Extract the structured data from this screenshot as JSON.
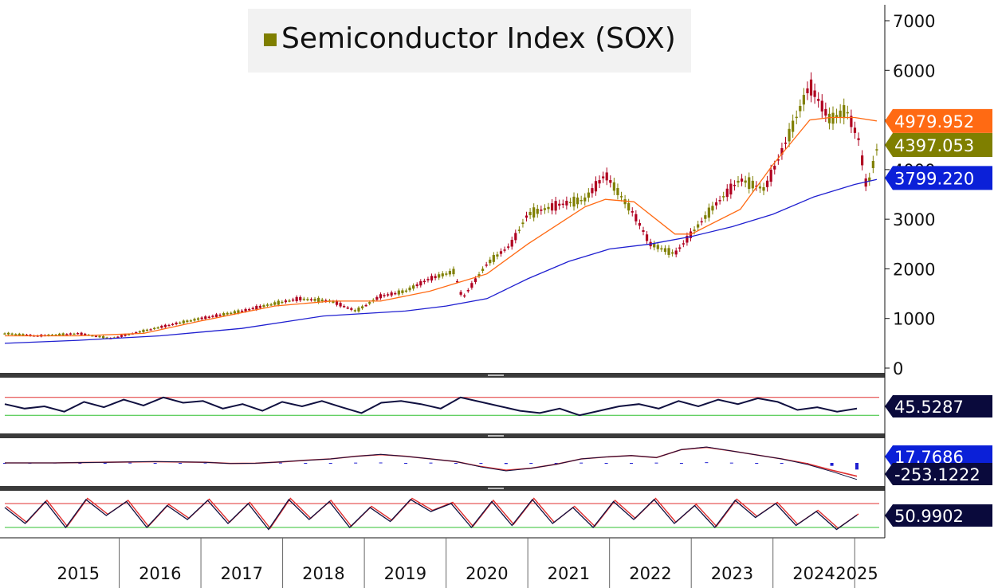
{
  "chart_data": {
    "type": "line",
    "title": "",
    "legend": {
      "position": "top-center",
      "entries": [
        "Semiconductor Index (SOX)"
      ]
    },
    "colors": {
      "price_up": "#7f7f00",
      "price_down": "#b00020",
      "ma_short": "#ff6a13",
      "ma_long": "#1f1fd0",
      "rsi_line": "#101040",
      "upper_band": "#e03030",
      "lower_band": "#30c030",
      "macd_signal": "#e03030",
      "macd_hist": "#1f1fd0",
      "tag_orange": "#ff6a13",
      "tag_olive": "#7f7f00",
      "tag_blue": "#0b20d8",
      "tag_navy": "#0a0a3c"
    },
    "x_axis": {
      "labels": [
        "2015",
        "2016",
        "2017",
        "2018",
        "2019",
        "2020",
        "2021",
        "2022",
        "2023",
        "2024",
        "2025"
      ],
      "range": [
        2014.6,
        2025.3
      ]
    },
    "y_axis": {
      "ticks": [
        "0",
        "1000",
        "2000",
        "3000",
        "4000",
        "5000",
        "6000",
        "7000"
      ],
      "range": [
        0,
        7000
      ]
    },
    "series": [
      {
        "name": "Semiconductor Index (SOX)",
        "x": [
          2014.6,
          2015.0,
          2015.5,
          2015.9,
          2016.3,
          2016.7,
          2017.0,
          2017.5,
          2017.9,
          2018.2,
          2018.6,
          2018.9,
          2019.2,
          2019.5,
          2019.8,
          2020.1,
          2020.2,
          2020.5,
          2020.8,
          2021.0,
          2021.4,
          2021.7,
          2021.95,
          2022.3,
          2022.5,
          2022.8,
          2023.0,
          2023.3,
          2023.6,
          2023.9,
          2024.2,
          2024.45,
          2024.7,
          2024.9,
          2025.05,
          2025.15,
          2025.27
        ],
        "values": [
          700,
          650,
          700,
          600,
          750,
          900,
          1000,
          1150,
          1300,
          1400,
          1350,
          1150,
          1450,
          1550,
          1800,
          1950,
          1400,
          2100,
          2500,
          3100,
          3300,
          3400,
          3900,
          3100,
          2500,
          2300,
          2700,
          3300,
          3800,
          3600,
          4700,
          5700,
          5000,
          5200,
          4600,
          3600,
          4400
        ]
      },
      {
        "name": "",
        "x": [
          2014.6,
          2015.5,
          2016.3,
          2017.0,
          2017.9,
          2018.6,
          2019.2,
          2019.8,
          2020.5,
          2021.0,
          2021.7,
          2021.95,
          2022.3,
          2022.8,
          2023.0,
          2023.6,
          2024.0,
          2024.45,
          2024.7,
          2025.0,
          2025.27
        ],
        "values": [
          650,
          650,
          700,
          950,
          1250,
          1350,
          1350,
          1550,
          1900,
          2500,
          3250,
          3400,
          3350,
          2700,
          2700,
          3200,
          4100,
          5000,
          5050,
          5050,
          4980
        ]
      },
      {
        "name": "",
        "x": [
          2014.6,
          2015.5,
          2016.5,
          2017.5,
          2018.5,
          2019.5,
          2020.0,
          2020.5,
          2021.0,
          2021.5,
          2022.0,
          2022.5,
          2023.0,
          2023.5,
          2024.0,
          2024.5,
          2025.0,
          2025.27
        ],
        "values": [
          500,
          560,
          650,
          800,
          1050,
          1150,
          1250,
          1400,
          1800,
          2150,
          2400,
          2500,
          2650,
          2850,
          3100,
          3450,
          3700,
          3800
        ]
      }
    ],
    "last_values": [
      "4979.952",
      "4397.053",
      "3799.220"
    ],
    "indicators": [
      {
        "name": "",
        "last_value": "45.5287",
        "range": [
          0,
          100
        ],
        "upper": 70,
        "lower": 30,
        "values": [
          55,
          45,
          50,
          38,
          60,
          48,
          65,
          52,
          70,
          58,
          62,
          45,
          55,
          40,
          60,
          50,
          62,
          48,
          35,
          58,
          62,
          55,
          45,
          70,
          60,
          50,
          40,
          35,
          45,
          30,
          40,
          50,
          55,
          45,
          62,
          50,
          65,
          55,
          68,
          60,
          42,
          48,
          38,
          45
        ]
      },
      {
        "name": "",
        "last_values": [
          "17.7686",
          "-253.1222"
        ],
        "range": [
          -300,
          300
        ],
        "values": [
          0,
          0,
          0,
          5,
          10,
          15,
          20,
          15,
          10,
          -10,
          -5,
          15,
          40,
          60,
          100,
          130,
          100,
          60,
          20,
          -60,
          -120,
          -80,
          -20,
          60,
          90,
          110,
          80,
          200,
          240,
          180,
          120,
          60,
          -20,
          -130,
          -250
        ],
        "signal": [
          0,
          0,
          0,
          5,
          10,
          15,
          18,
          15,
          10,
          -8,
          -5,
          15,
          40,
          60,
          100,
          125,
          100,
          60,
          20,
          -55,
          -110,
          -80,
          -20,
          60,
          90,
          110,
          80,
          200,
          235,
          180,
          120,
          60,
          -10,
          -110,
          -200
        ]
      },
      {
        "name": "",
        "last_value": "50.9902",
        "range": [
          0,
          100
        ],
        "upper": 80,
        "lower": 20,
        "values": [
          70,
          30,
          85,
          20,
          90,
          50,
          85,
          20,
          75,
          40,
          88,
          30,
          80,
          15,
          90,
          40,
          85,
          20,
          70,
          35,
          90,
          60,
          80,
          20,
          85,
          25,
          90,
          30,
          70,
          20,
          85,
          40,
          90,
          30,
          75,
          20,
          88,
          45,
          80,
          25,
          60,
          15,
          51
        ]
      }
    ]
  }
}
